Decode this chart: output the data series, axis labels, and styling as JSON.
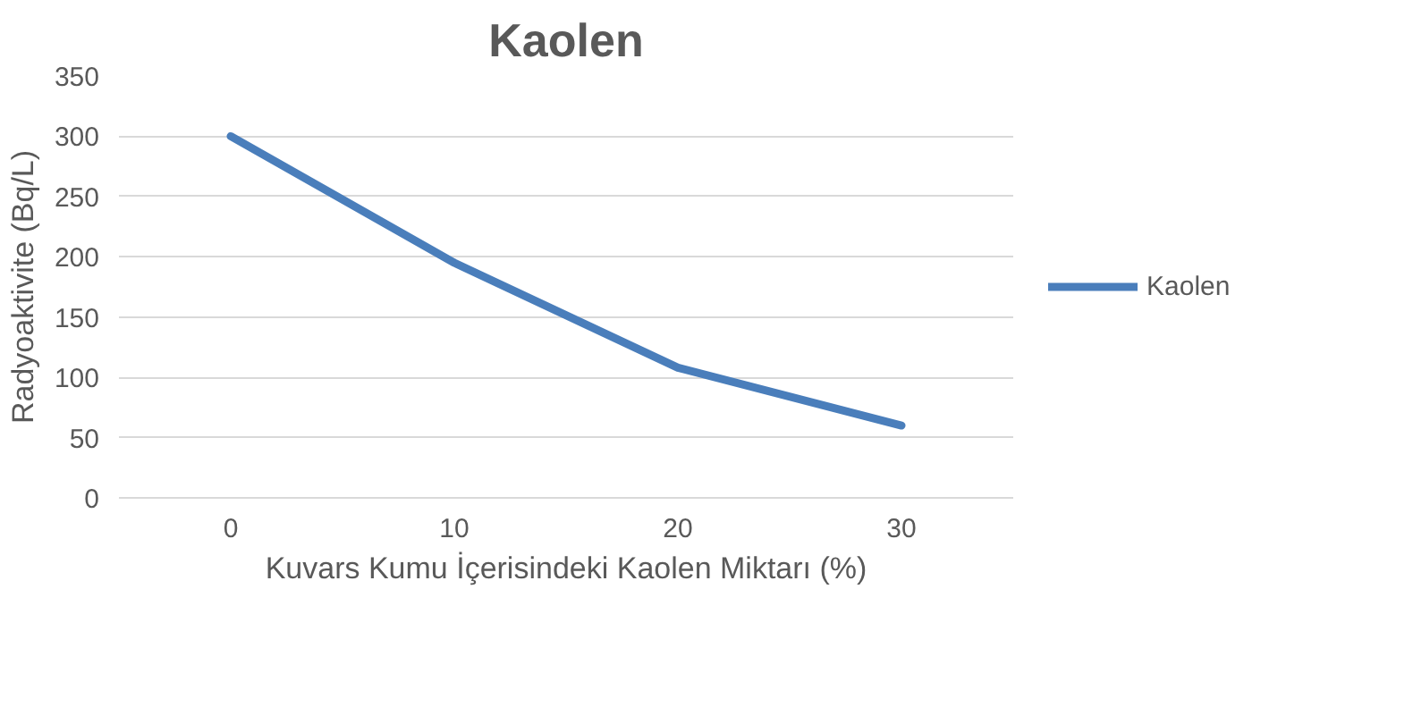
{
  "chart_data": {
    "type": "line",
    "title": "Kaolen",
    "xlabel": "Kuvars Kumu İçerisindeki Kaolen Miktarı (%)",
    "ylabel": "Radyoaktivite (Bq/L)",
    "categories": [
      "0",
      "10",
      "20",
      "30"
    ],
    "series": [
      {
        "name": "Kaolen",
        "color": "#4a7ebb",
        "values": [
          300,
          195,
          108,
          60
        ]
      }
    ],
    "ylim": [
      0,
      350
    ],
    "yticks": [
      0,
      50,
      100,
      150,
      200,
      250,
      300,
      350
    ],
    "grid": "y",
    "legend": "right",
    "marker": "none",
    "line_style": "solid"
  }
}
